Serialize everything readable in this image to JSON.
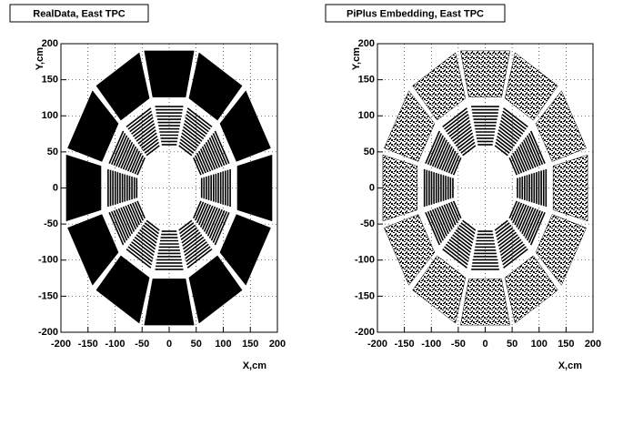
{
  "chart_data": [
    {
      "type": "hitmap",
      "title": "RealData, East TPC",
      "xlabel": "X,cm",
      "ylabel": "Y,cm",
      "xlim": [
        -200,
        200
      ],
      "ylim": [
        -200,
        200
      ],
      "xticks": [
        -200,
        -150,
        -100,
        -50,
        0,
        50,
        100,
        150,
        200
      ],
      "yticks": [
        -200,
        -150,
        -100,
        -50,
        0,
        50,
        100,
        150,
        200
      ],
      "grid": true,
      "fill": "solid"
    },
    {
      "type": "hitmap",
      "title": "PiPlus Embedding, East TPC",
      "xlabel": "X,cm",
      "ylabel": "Y,cm",
      "xlim": [
        -200,
        200
      ],
      "ylim": [
        -200,
        200
      ],
      "xticks": [
        -200,
        -150,
        -100,
        -50,
        0,
        50,
        100,
        150,
        200
      ],
      "yticks": [
        -200,
        -150,
        -100,
        -50,
        0,
        50,
        100,
        150,
        200
      ],
      "grid": true,
      "fill": "speckled"
    }
  ]
}
